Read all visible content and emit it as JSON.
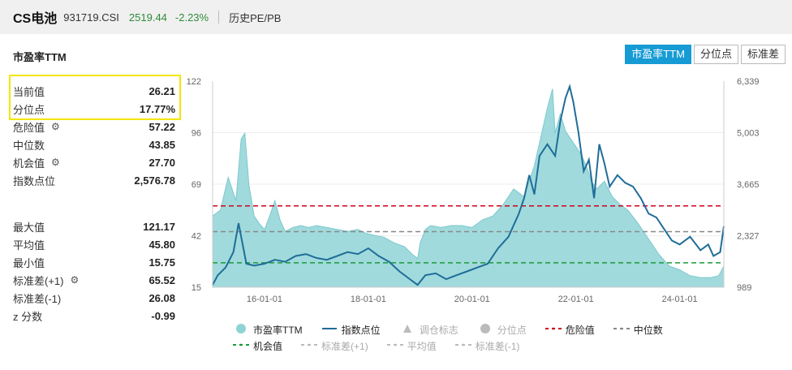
{
  "header": {
    "name": "CS电池",
    "code": "931719.CSI",
    "price": "2519.44",
    "change": "-2.23%",
    "link": "历史PE/PB"
  },
  "panel": {
    "title": "市盈率TTM",
    "tabs": [
      "市盈率TTM",
      "分位点",
      "标准差"
    ],
    "active_tab": "市盈率TTM"
  },
  "stats_top": [
    {
      "label": "当前值",
      "value": "26.21",
      "gear": false
    },
    {
      "label": "分位点",
      "value": "17.77%",
      "gear": false
    },
    {
      "label": "危险值",
      "value": "57.22",
      "gear": true
    },
    {
      "label": "中位数",
      "value": "43.85",
      "gear": false
    },
    {
      "label": "机会值",
      "value": "27.70",
      "gear": true
    },
    {
      "label": "指数点位",
      "value": "2,576.78",
      "gear": false
    }
  ],
  "stats_bottom": [
    {
      "label": "最大值",
      "value": "121.17",
      "gear": false
    },
    {
      "label": "平均值",
      "value": "45.80",
      "gear": false
    },
    {
      "label": "最小值",
      "value": "15.75",
      "gear": false
    },
    {
      "label": "标准差(+1)",
      "value": "65.52",
      "gear": true
    },
    {
      "label": "标准差(-1)",
      "value": "26.08",
      "gear": false
    },
    {
      "label": "z 分数",
      "value": "-0.99",
      "gear": false
    }
  ],
  "legend": {
    "row1": [
      {
        "name": "市盈率TTM",
        "icon": "circle",
        "color": "#8fd3d6",
        "enabled": true
      },
      {
        "name": "指数点位",
        "icon": "line",
        "color": "#1f6d99",
        "enabled": true
      },
      {
        "name": "调仓标志",
        "icon": "triangle",
        "color": "#bbbbbb",
        "enabled": false
      },
      {
        "name": "分位点",
        "icon": "circle",
        "color": "#bbbbbb",
        "enabled": false
      },
      {
        "name": "危险值",
        "icon": "dash",
        "color": "#d0021b",
        "enabled": true
      },
      {
        "name": "中位数",
        "icon": "dash",
        "color": "#888888",
        "enabled": true
      }
    ],
    "row2": [
      {
        "name": "机会值",
        "icon": "dash",
        "color": "#1a9b3a",
        "enabled": true
      },
      {
        "name": "标准差(+1)",
        "icon": "dash",
        "color": "#bbbbbb",
        "enabled": false
      },
      {
        "name": "平均值",
        "icon": "dash",
        "color": "#bbbbbb",
        "enabled": false
      },
      {
        "name": "标准差(-1)",
        "icon": "dash",
        "color": "#bbbbbb",
        "enabled": false
      }
    ]
  },
  "chart_data": {
    "type": "area",
    "x_ticks": [
      "16-01-01",
      "18-01-01",
      "20-01-01",
      "22-01-01",
      "24-01-01"
    ],
    "x_tick_years": [
      2016,
      2018,
      2020,
      2022,
      2024
    ],
    "x_range": [
      2015.0,
      2024.85
    ],
    "y_left_ticks": [
      "122",
      "96",
      "69",
      "42",
      "15"
    ],
    "y_left_range": [
      15,
      122
    ],
    "y_right_ticks": [
      "6,339",
      "5,003",
      "3,665",
      "2,327",
      "989"
    ],
    "y_right_range": [
      989,
      6339
    ],
    "reference_lines": [
      {
        "name": "危险值",
        "value": 57.22,
        "color": "#d0021b"
      },
      {
        "name": "中位数",
        "value": 43.85,
        "color": "#888888"
      },
      {
        "name": "机会值",
        "value": 27.7,
        "color": "#1a9b3a"
      }
    ],
    "series": [
      {
        "name": "市盈率TTM",
        "axis": "left",
        "color": "#8fd3d6",
        "points": [
          [
            2015.0,
            52
          ],
          [
            2015.15,
            55
          ],
          [
            2015.3,
            72
          ],
          [
            2015.45,
            60
          ],
          [
            2015.55,
            92
          ],
          [
            2015.62,
            95
          ],
          [
            2015.7,
            68
          ],
          [
            2015.8,
            52
          ],
          [
            2015.9,
            48
          ],
          [
            2016.0,
            45
          ],
          [
            2016.1,
            52
          ],
          [
            2016.2,
            60
          ],
          [
            2016.3,
            50
          ],
          [
            2016.4,
            44
          ],
          [
            2016.55,
            46
          ],
          [
            2016.7,
            47
          ],
          [
            2016.85,
            46
          ],
          [
            2017.0,
            47
          ],
          [
            2017.2,
            46
          ],
          [
            2017.4,
            45
          ],
          [
            2017.6,
            44
          ],
          [
            2017.8,
            45
          ],
          [
            2017.95,
            43
          ],
          [
            2018.1,
            42
          ],
          [
            2018.3,
            41
          ],
          [
            2018.5,
            38
          ],
          [
            2018.7,
            36
          ],
          [
            2018.85,
            32
          ],
          [
            2018.95,
            30
          ],
          [
            2019.0,
            38
          ],
          [
            2019.1,
            45
          ],
          [
            2019.2,
            47
          ],
          [
            2019.4,
            46
          ],
          [
            2019.6,
            47
          ],
          [
            2019.8,
            47
          ],
          [
            2020.0,
            46
          ],
          [
            2020.2,
            50
          ],
          [
            2020.4,
            52
          ],
          [
            2020.6,
            58
          ],
          [
            2020.8,
            66
          ],
          [
            2021.0,
            62
          ],
          [
            2021.2,
            78
          ],
          [
            2021.35,
            96
          ],
          [
            2021.45,
            108
          ],
          [
            2021.55,
            118
          ],
          [
            2021.6,
            95
          ],
          [
            2021.7,
            105
          ],
          [
            2021.8,
            96
          ],
          [
            2021.9,
            92
          ],
          [
            2022.0,
            88
          ],
          [
            2022.1,
            84
          ],
          [
            2022.2,
            78
          ],
          [
            2022.3,
            70
          ],
          [
            2022.4,
            66
          ],
          [
            2022.55,
            70
          ],
          [
            2022.7,
            62
          ],
          [
            2022.85,
            58
          ],
          [
            2023.0,
            55
          ],
          [
            2023.2,
            48
          ],
          [
            2023.4,
            40
          ],
          [
            2023.6,
            32
          ],
          [
            2023.8,
            26
          ],
          [
            2024.0,
            24
          ],
          [
            2024.2,
            21
          ],
          [
            2024.4,
            20
          ],
          [
            2024.6,
            20
          ],
          [
            2024.75,
            21
          ],
          [
            2024.85,
            26
          ]
        ]
      },
      {
        "name": "指数点位",
        "axis": "right",
        "color": "#1f6d99",
        "points": [
          [
            2015.0,
            1050
          ],
          [
            2015.1,
            1300
          ],
          [
            2015.25,
            1500
          ],
          [
            2015.4,
            1900
          ],
          [
            2015.5,
            2650
          ],
          [
            2015.55,
            2300
          ],
          [
            2015.65,
            1600
          ],
          [
            2015.8,
            1550
          ],
          [
            2016.0,
            1600
          ],
          [
            2016.2,
            1700
          ],
          [
            2016.4,
            1650
          ],
          [
            2016.6,
            1800
          ],
          [
            2016.8,
            1850
          ],
          [
            2017.0,
            1750
          ],
          [
            2017.2,
            1700
          ],
          [
            2017.4,
            1800
          ],
          [
            2017.6,
            1900
          ],
          [
            2017.8,
            1850
          ],
          [
            2018.0,
            2000
          ],
          [
            2018.2,
            1800
          ],
          [
            2018.4,
            1650
          ],
          [
            2018.6,
            1400
          ],
          [
            2018.8,
            1200
          ],
          [
            2018.95,
            1050
          ],
          [
            2019.1,
            1300
          ],
          [
            2019.3,
            1350
          ],
          [
            2019.5,
            1200
          ],
          [
            2019.7,
            1300
          ],
          [
            2019.9,
            1400
          ],
          [
            2020.1,
            1500
          ],
          [
            2020.3,
            1600
          ],
          [
            2020.5,
            2000
          ],
          [
            2020.7,
            2300
          ],
          [
            2020.9,
            2900
          ],
          [
            2021.0,
            3300
          ],
          [
            2021.1,
            3900
          ],
          [
            2021.2,
            3400
          ],
          [
            2021.3,
            4400
          ],
          [
            2021.45,
            4700
          ],
          [
            2021.6,
            4400
          ],
          [
            2021.7,
            5300
          ],
          [
            2021.8,
            5900
          ],
          [
            2021.88,
            6200
          ],
          [
            2021.95,
            5800
          ],
          [
            2022.05,
            5000
          ],
          [
            2022.15,
            4000
          ],
          [
            2022.25,
            4300
          ],
          [
            2022.35,
            3300
          ],
          [
            2022.45,
            4700
          ],
          [
            2022.55,
            4200
          ],
          [
            2022.65,
            3600
          ],
          [
            2022.8,
            3900
          ],
          [
            2022.95,
            3700
          ],
          [
            2023.1,
            3600
          ],
          [
            2023.25,
            3300
          ],
          [
            2023.4,
            2900
          ],
          [
            2023.55,
            2800
          ],
          [
            2023.7,
            2500
          ],
          [
            2023.85,
            2200
          ],
          [
            2024.0,
            2100
          ],
          [
            2024.2,
            2300
          ],
          [
            2024.4,
            1950
          ],
          [
            2024.55,
            2100
          ],
          [
            2024.65,
            1800
          ],
          [
            2024.78,
            1900
          ],
          [
            2024.85,
            2576
          ]
        ]
      }
    ]
  }
}
